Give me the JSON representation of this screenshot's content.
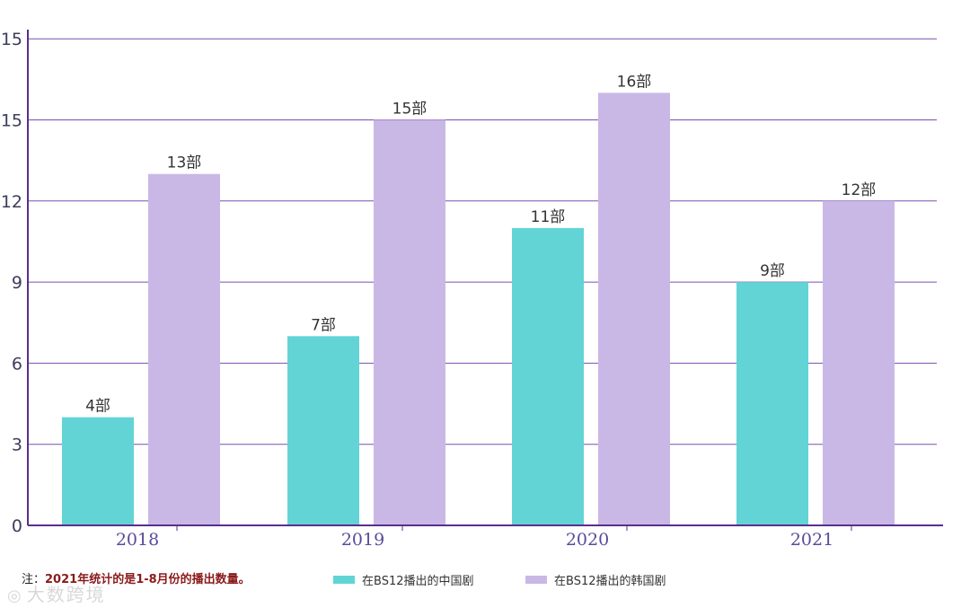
{
  "chart_data": {
    "type": "bar",
    "categories": [
      "2018",
      "2019",
      "2020",
      "2021"
    ],
    "y_tick_labels": [
      "0",
      "3",
      "6",
      "9",
      "12",
      "15",
      "15"
    ],
    "series": [
      {
        "name": "在BS12播出的中国剧",
        "values": [
          4,
          7,
          11,
          9
        ],
        "labels": [
          "4部",
          "7部",
          "11部",
          "9部"
        ],
        "color": "#62d4d6"
      },
      {
        "name": "在BS12播出的韩国剧",
        "values": [
          13,
          15,
          16,
          12
        ],
        "labels": [
          "13部",
          "15部",
          "16部",
          "12部"
        ],
        "color": "#c9b8e6"
      }
    ],
    "grid": true,
    "gridline_color": "#7b4fb0",
    "legend_position": "bottom-center"
  },
  "note": {
    "prefix": "注：",
    "text": "2021年统计的是1-8月份的播出数量。"
  },
  "watermark": {
    "icon": "camera-icon",
    "text": "大数跨境"
  }
}
